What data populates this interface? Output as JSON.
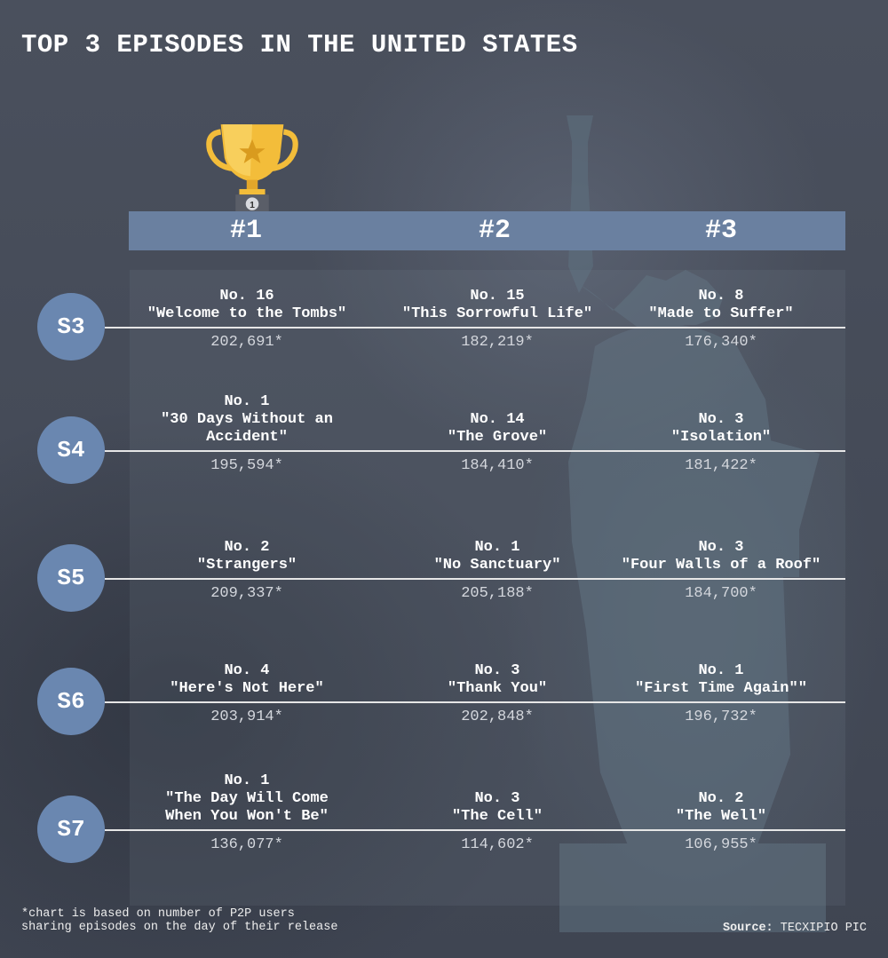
{
  "title": "TOP 3 EPISODES IN THE UNITED STATES",
  "ranks": [
    "#1",
    "#2",
    "#3"
  ],
  "chart_data": {
    "type": "table",
    "title": "TOP 3 EPISODES IN THE UNITED STATES",
    "columns": [
      "#1",
      "#2",
      "#3"
    ],
    "rows": [
      {
        "season": "S3",
        "cells": [
          {
            "number": "No. 16",
            "title": "\"Welcome to the Tombs\"",
            "views": "202,691*",
            "value": 202691
          },
          {
            "number": "No. 15",
            "title": "\"This Sorrowful Life\"",
            "views": "182,219*",
            "value": 182219
          },
          {
            "number": "No. 8",
            "title": "\"Made to Suffer\"",
            "views": "176,340*",
            "value": 176340
          }
        ]
      },
      {
        "season": "S4",
        "cells": [
          {
            "number": "No. 1",
            "title": "\"30 Days Without an\nAccident\"",
            "views": "195,594*",
            "value": 195594
          },
          {
            "number": "No. 14",
            "title": "\"The Grove\"",
            "views": "184,410*",
            "value": 184410
          },
          {
            "number": "No. 3",
            "title": "\"Isolation\"",
            "views": "181,422*",
            "value": 181422
          }
        ]
      },
      {
        "season": "S5",
        "cells": [
          {
            "number": "No. 2",
            "title": "\"Strangers\"",
            "views": "209,337*",
            "value": 209337
          },
          {
            "number": "No. 1",
            "title": "\"No Sanctuary\"",
            "views": "205,188*",
            "value": 205188
          },
          {
            "number": "No. 3",
            "title": "\"Four Walls of a Roof\"",
            "views": "184,700*",
            "value": 184700
          }
        ]
      },
      {
        "season": "S6",
        "cells": [
          {
            "number": "No. 4",
            "title": "\"Here's Not Here\"",
            "views": "203,914*",
            "value": 203914
          },
          {
            "number": "No. 3",
            "title": "\"Thank You\"",
            "views": "202,848*",
            "value": 202848
          },
          {
            "number": "No. 1",
            "title": "\"First Time Again\"\"",
            "views": "196,732*",
            "value": 196732
          }
        ]
      },
      {
        "season": "S7",
        "cells": [
          {
            "number": "No. 1",
            "title": "\"The Day Will Come\nWhen You Won't Be\"",
            "views": "136,077*",
            "value": 136077
          },
          {
            "number": "No. 3",
            "title": "\"The Cell\"",
            "views": "114,602*",
            "value": 114602
          },
          {
            "number": "No. 2",
            "title": "\"The Well\"",
            "views": "106,955*",
            "value": 106955
          }
        ]
      }
    ]
  },
  "footnote": "*chart is based on number of P2P users\nsharing episodes on the day of their release",
  "source_label": "Source:",
  "source_value": "TECXIPIO PIC",
  "colors": {
    "background": "#454b59",
    "rank_bar": "#6a80a0",
    "season_circle": "#6a87b0",
    "trophy": "#f3bd3a"
  },
  "icons": {
    "trophy": "trophy-icon",
    "statue": "statue-of-liberty-image"
  }
}
